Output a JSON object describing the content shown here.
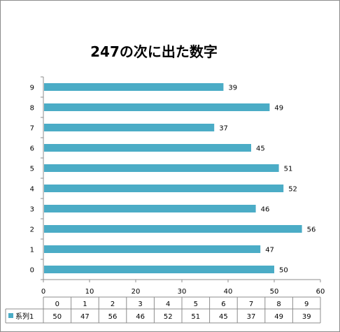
{
  "chart_data": {
    "type": "bar",
    "orientation": "horizontal",
    "title": "247の次に出た数字",
    "categories": [
      "0",
      "1",
      "2",
      "3",
      "4",
      "5",
      "6",
      "7",
      "8",
      "9"
    ],
    "series": [
      {
        "name": "系列1",
        "values": [
          50,
          47,
          56,
          46,
          52,
          51,
          45,
          37,
          49,
          39
        ],
        "color": "#4bacc6"
      }
    ],
    "xlim": [
      0,
      60
    ],
    "xticks": [
      "0",
      "10",
      "20",
      "30",
      "40",
      "50",
      "60"
    ],
    "grid": false,
    "data_table": true,
    "data_labels": true
  }
}
